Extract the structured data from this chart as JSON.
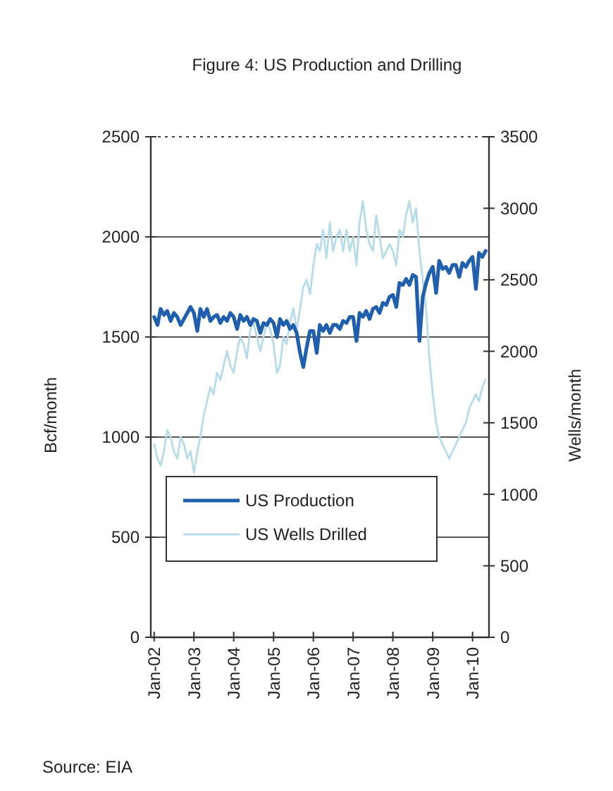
{
  "chart_data": {
    "type": "line",
    "title": "Figure 4: US Production and Drilling",
    "ylabel": "Bcf/month",
    "y2label": "Wells/month",
    "x": [
      "2002-01",
      "2002-02",
      "2002-03",
      "2002-04",
      "2002-05",
      "2002-06",
      "2002-07",
      "2002-08",
      "2002-09",
      "2002-10",
      "2002-11",
      "2002-12",
      "2003-01",
      "2003-02",
      "2003-03",
      "2003-04",
      "2003-05",
      "2003-06",
      "2003-07",
      "2003-08",
      "2003-09",
      "2003-10",
      "2003-11",
      "2003-12",
      "2004-01",
      "2004-02",
      "2004-03",
      "2004-04",
      "2004-05",
      "2004-06",
      "2004-07",
      "2004-08",
      "2004-09",
      "2004-10",
      "2004-11",
      "2004-12",
      "2005-01",
      "2005-02",
      "2005-03",
      "2005-04",
      "2005-05",
      "2005-06",
      "2005-07",
      "2005-08",
      "2005-09",
      "2005-10",
      "2005-11",
      "2005-12",
      "2006-01",
      "2006-02",
      "2006-03",
      "2006-04",
      "2006-05",
      "2006-06",
      "2006-07",
      "2006-08",
      "2006-09",
      "2006-10",
      "2006-11",
      "2006-12",
      "2007-01",
      "2007-02",
      "2007-03",
      "2007-04",
      "2007-05",
      "2007-06",
      "2007-07",
      "2007-08",
      "2007-09",
      "2007-10",
      "2007-11",
      "2007-12",
      "2008-01",
      "2008-02",
      "2008-03",
      "2008-04",
      "2008-05",
      "2008-06",
      "2008-07",
      "2008-08",
      "2008-09",
      "2008-10",
      "2008-11",
      "2008-12",
      "2009-01",
      "2009-02",
      "2009-03",
      "2009-04",
      "2009-05",
      "2009-06",
      "2009-07",
      "2009-08",
      "2009-09",
      "2009-10",
      "2009-11",
      "2009-12",
      "2010-01",
      "2010-02",
      "2010-03",
      "2010-04",
      "2010-05"
    ],
    "series": [
      {
        "name": "US Production",
        "color": "#1f5fad",
        "values": [
          1600,
          1560,
          1640,
          1610,
          1630,
          1580,
          1620,
          1600,
          1560,
          1590,
          1620,
          1650,
          1620,
          1530,
          1640,
          1600,
          1640,
          1580,
          1600,
          1610,
          1570,
          1600,
          1580,
          1620,
          1600,
          1540,
          1610,
          1580,
          1600,
          1560,
          1590,
          1580,
          1520,
          1570,
          1560,
          1590,
          1570,
          1500,
          1590,
          1560,
          1580,
          1540,
          1560,
          1520,
          1420,
          1350,
          1450,
          1530,
          1530,
          1420,
          1560,
          1530,
          1560,
          1520,
          1560,
          1560,
          1540,
          1580,
          1570,
          1600,
          1600,
          1480,
          1620,
          1600,
          1630,
          1590,
          1640,
          1650,
          1620,
          1670,
          1660,
          1700,
          1710,
          1650,
          1770,
          1760,
          1790,
          1760,
          1810,
          1800,
          1480,
          1700,
          1770,
          1820,
          1850,
          1720,
          1880,
          1840,
          1850,
          1820,
          1860,
          1860,
          1800,
          1870,
          1850,
          1880,
          1900,
          1740,
          1920,
          1900,
          1930
        ]
      },
      {
        "name": "US Wells Drilled",
        "color": "#b6dcea",
        "axis": "y2",
        "values": [
          1350,
          1250,
          1200,
          1300,
          1450,
          1400,
          1300,
          1250,
          1400,
          1350,
          1250,
          1300,
          1150,
          1300,
          1400,
          1550,
          1650,
          1750,
          1700,
          1850,
          1800,
          1900,
          2000,
          1900,
          1850,
          2000,
          2100,
          2050,
          1950,
          2150,
          2200,
          2100,
          2000,
          2100,
          2200,
          2150,
          2050,
          1850,
          1900,
          2100,
          2050,
          2200,
          2300,
          2150,
          2300,
          2450,
          2500,
          2400,
          2600,
          2750,
          2700,
          2850,
          2650,
          2900,
          2700,
          2800,
          2850,
          2700,
          2850,
          2700,
          2800,
          2600,
          2900,
          3050,
          2850,
          2750,
          2700,
          2950,
          2800,
          2650,
          2700,
          2750,
          2700,
          2600,
          2850,
          2800,
          2950,
          3050,
          2900,
          3000,
          2700,
          2500,
          2300,
          1950,
          1700,
          1500,
          1400,
          1350,
          1300,
          1250,
          1300,
          1350,
          1400,
          1450,
          1500,
          1600,
          1650,
          1700,
          1650,
          1750,
          1800
        ]
      }
    ],
    "xlim": [
      "2001-12",
      "2010-06"
    ],
    "xticks": [
      {
        "value": "2002-01",
        "label": "Jan-02"
      },
      {
        "value": "2003-01",
        "label": "Jan-03"
      },
      {
        "value": "2004-01",
        "label": "Jan-04"
      },
      {
        "value": "2005-01",
        "label": "Jan-05"
      },
      {
        "value": "2006-01",
        "label": "Jan-06"
      },
      {
        "value": "2007-01",
        "label": "Jan-07"
      },
      {
        "value": "2008-01",
        "label": "Jan-08"
      },
      {
        "value": "2009-01",
        "label": "Jan-09"
      },
      {
        "value": "2010-01",
        "label": "Jan-10"
      }
    ],
    "ylim": [
      0,
      2500
    ],
    "yticks": [
      0,
      500,
      1000,
      1500,
      2000,
      2500
    ],
    "y2lim": [
      0,
      3500
    ],
    "y2ticks": [
      0,
      500,
      1000,
      1500,
      2000,
      2500,
      3000,
      3500
    ],
    "grid": "y",
    "legend": "bottom left",
    "line_style": "solid",
    "annotations": [
      "Source: EIA"
    ]
  }
}
